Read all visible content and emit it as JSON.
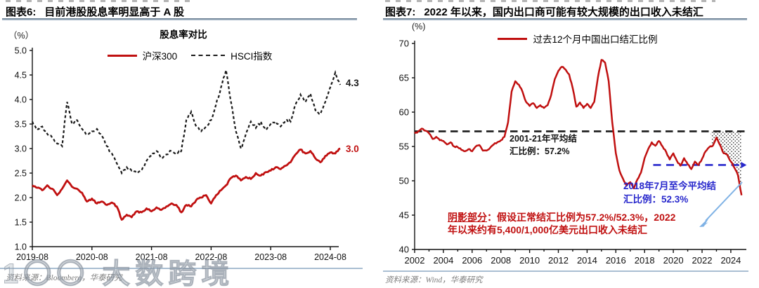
{
  "watermark": {
    "text": "1〇〇 大数跨境"
  },
  "chart_data": [
    {
      "type": "line",
      "fig_label": "图表6:",
      "fig_title": "目前港股股息率明显高于 A 股",
      "title": "股息率对比",
      "unit": "（%）",
      "x_start_label": "2019-08",
      "x_step": "month",
      "xticklabels": [
        "2019-08",
        "2020-08",
        "2021-08",
        "2022-08",
        "2023-08",
        "2024-08"
      ],
      "ylim": [
        1.0,
        5.0
      ],
      "ytick_step": 0.5,
      "grid": false,
      "legend_position": "top",
      "series": [
        {
          "name": "沪深300",
          "color": "#c01010",
          "style": "solid",
          "end_label": "3.0",
          "values": [
            2.25,
            2.2,
            2.15,
            2.25,
            2.18,
            2.05,
            2.18,
            2.35,
            2.22,
            2.18,
            2.1,
            1.92,
            1.98,
            1.88,
            1.92,
            1.85,
            1.9,
            1.82,
            1.55,
            1.65,
            1.6,
            1.72,
            1.7,
            1.78,
            1.72,
            1.8,
            1.75,
            1.82,
            1.88,
            1.85,
            1.7,
            1.85,
            1.82,
            1.95,
            2.0,
            2.05,
            1.88,
            2.05,
            2.15,
            2.25,
            2.4,
            2.45,
            2.35,
            2.42,
            2.38,
            2.5,
            2.45,
            2.52,
            2.55,
            2.62,
            2.58,
            2.65,
            2.72,
            2.88,
            2.98,
            2.9,
            2.95,
            2.8,
            2.72,
            2.85,
            2.92,
            2.9,
            3.0
          ]
        },
        {
          "name": "HSCI指数",
          "color": "#1a1a1a",
          "style": "dashed",
          "end_label": "4.3",
          "values": [
            3.55,
            3.38,
            3.45,
            3.3,
            3.22,
            3.1,
            3.05,
            3.95,
            3.5,
            3.58,
            3.4,
            3.28,
            3.35,
            3.4,
            3.26,
            3.05,
            2.9,
            2.7,
            2.5,
            2.62,
            2.55,
            2.5,
            2.55,
            2.75,
            2.85,
            2.95,
            2.8,
            2.88,
            2.95,
            2.88,
            2.95,
            3.58,
            3.75,
            3.45,
            3.35,
            3.45,
            3.58,
            3.9,
            4.25,
            4.6,
            3.95,
            3.35,
            3.0,
            3.3,
            3.55,
            3.42,
            3.55,
            3.38,
            3.5,
            3.55,
            3.45,
            3.58,
            3.55,
            3.9,
            4.1,
            3.95,
            4.12,
            3.78,
            3.7,
            3.95,
            4.25,
            4.55,
            4.3
          ]
        }
      ],
      "source": "资料来源：Bloomberg，华泰研究"
    },
    {
      "type": "line",
      "fig_label": "图表7:",
      "fig_title": "2022 年以来，国内出口商可能有较大规模的出口收入未结汇",
      "unit": "(%)",
      "xlim": [
        2002,
        2025
      ],
      "xticklabels": [
        "2002",
        "2004",
        "2006",
        "2008",
        "2010",
        "2012",
        "2014",
        "2016",
        "2018",
        "2020",
        "2022",
        "2024"
      ],
      "ylim": [
        40,
        70
      ],
      "ytick_step": 5,
      "grid": false,
      "series": [
        {
          "name": "过去12个月中国出口结汇比例",
          "color": "#c01010",
          "style": "solid",
          "x_start": 2002,
          "x_step": 0.25,
          "values": [
            56.9,
            57.2,
            57.6,
            57.3,
            56.9,
            56.1,
            56.4,
            55.9,
            55.8,
            55.3,
            55.6,
            55.0,
            54.9,
            54.5,
            54.3,
            54.6,
            54.3,
            55.0,
            55.2,
            54.4,
            54.4,
            54.8,
            55.3,
            55.6,
            55.9,
            56.4,
            58.5,
            63.0,
            64.5,
            64.0,
            63.0,
            61.5,
            60.9,
            61.3,
            60.6,
            61.0,
            60.6,
            61.0,
            62.5,
            64.8,
            66.0,
            66.6,
            66.2,
            65.5,
            63.5,
            60.8,
            61.4,
            60.6,
            61.2,
            60.6,
            61.5,
            65.0,
            67.6,
            67.2,
            64.5,
            58.5,
            54.0,
            51.5,
            50.3,
            49.3,
            49.8,
            48.9,
            50.2,
            51.2,
            53.3,
            54.6,
            55.6,
            55.1,
            55.8,
            55.0,
            54.2,
            53.1,
            54.0,
            52.9,
            52.2,
            53.3,
            52.4,
            51.7,
            52.8,
            52.3,
            53.2,
            54.3,
            54.9,
            55.1,
            56.3,
            55.2,
            54.0,
            53.8,
            52.8,
            51.9,
            50.8,
            47.9
          ]
        }
      ],
      "ref_lines": [
        {
          "label_line1": "2001-21年平均结",
          "label_line2": "汇比例：57.2%",
          "level": 57.2,
          "color": "#1a1a1a",
          "style": "dashed",
          "x_range": [
            2002,
            2025.1
          ]
        },
        {
          "label_line1": "2018年7月至今平均结",
          "label_line2": "汇比例：52.3%",
          "level": 52.3,
          "color": "#2727cc",
          "style": "dashed",
          "x_range": [
            2018.6,
            2025.0
          ],
          "arrow_end": true
        }
      ],
      "shaded_region": {
        "from_x": 2022.6,
        "top_level": 57.2,
        "pattern": "dots"
      },
      "shaded_note_underline": "阴影部分",
      "shaded_note_rest": "：假设正常结汇比例为57.2%/52.3%，2022",
      "shaded_note_line2": "年以来约有5,400/1,000亿美元出口收入未结汇",
      "source": "资料来源：Wind，华泰研究"
    }
  ]
}
